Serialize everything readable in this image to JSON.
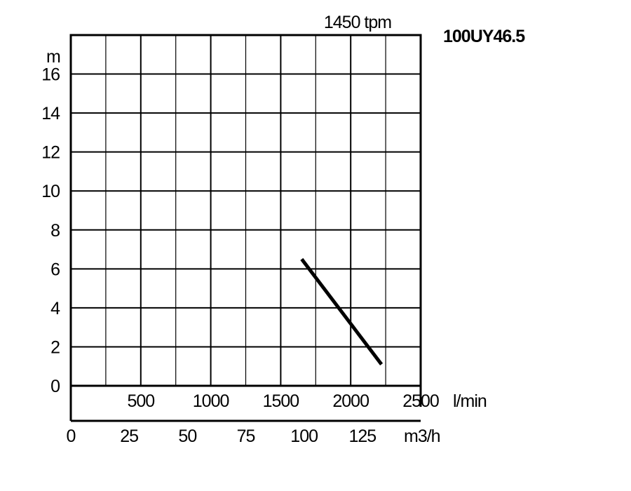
{
  "chart_data": {
    "type": "line",
    "title": "100UY46.5",
    "subtitle": "1450 tpm",
    "ylabel": "m",
    "ylim": [
      0,
      18
    ],
    "yticks": [
      "0",
      "2",
      "4",
      "6",
      "8",
      "10",
      "12",
      "14",
      "16"
    ],
    "xlim": [
      0,
      2500
    ],
    "xticks_primary": [
      "500",
      "1000",
      "1500",
      "2000",
      "2500"
    ],
    "xunit_primary": "l/min",
    "xticks_secondary": [
      "0",
      "25",
      "50",
      "75",
      "100",
      "125"
    ],
    "xunit_secondary": "m3/h",
    "grid": true,
    "series": [
      {
        "x": [
          1650,
          2220
        ],
        "y": [
          6.5,
          1.1
        ]
      }
    ]
  }
}
